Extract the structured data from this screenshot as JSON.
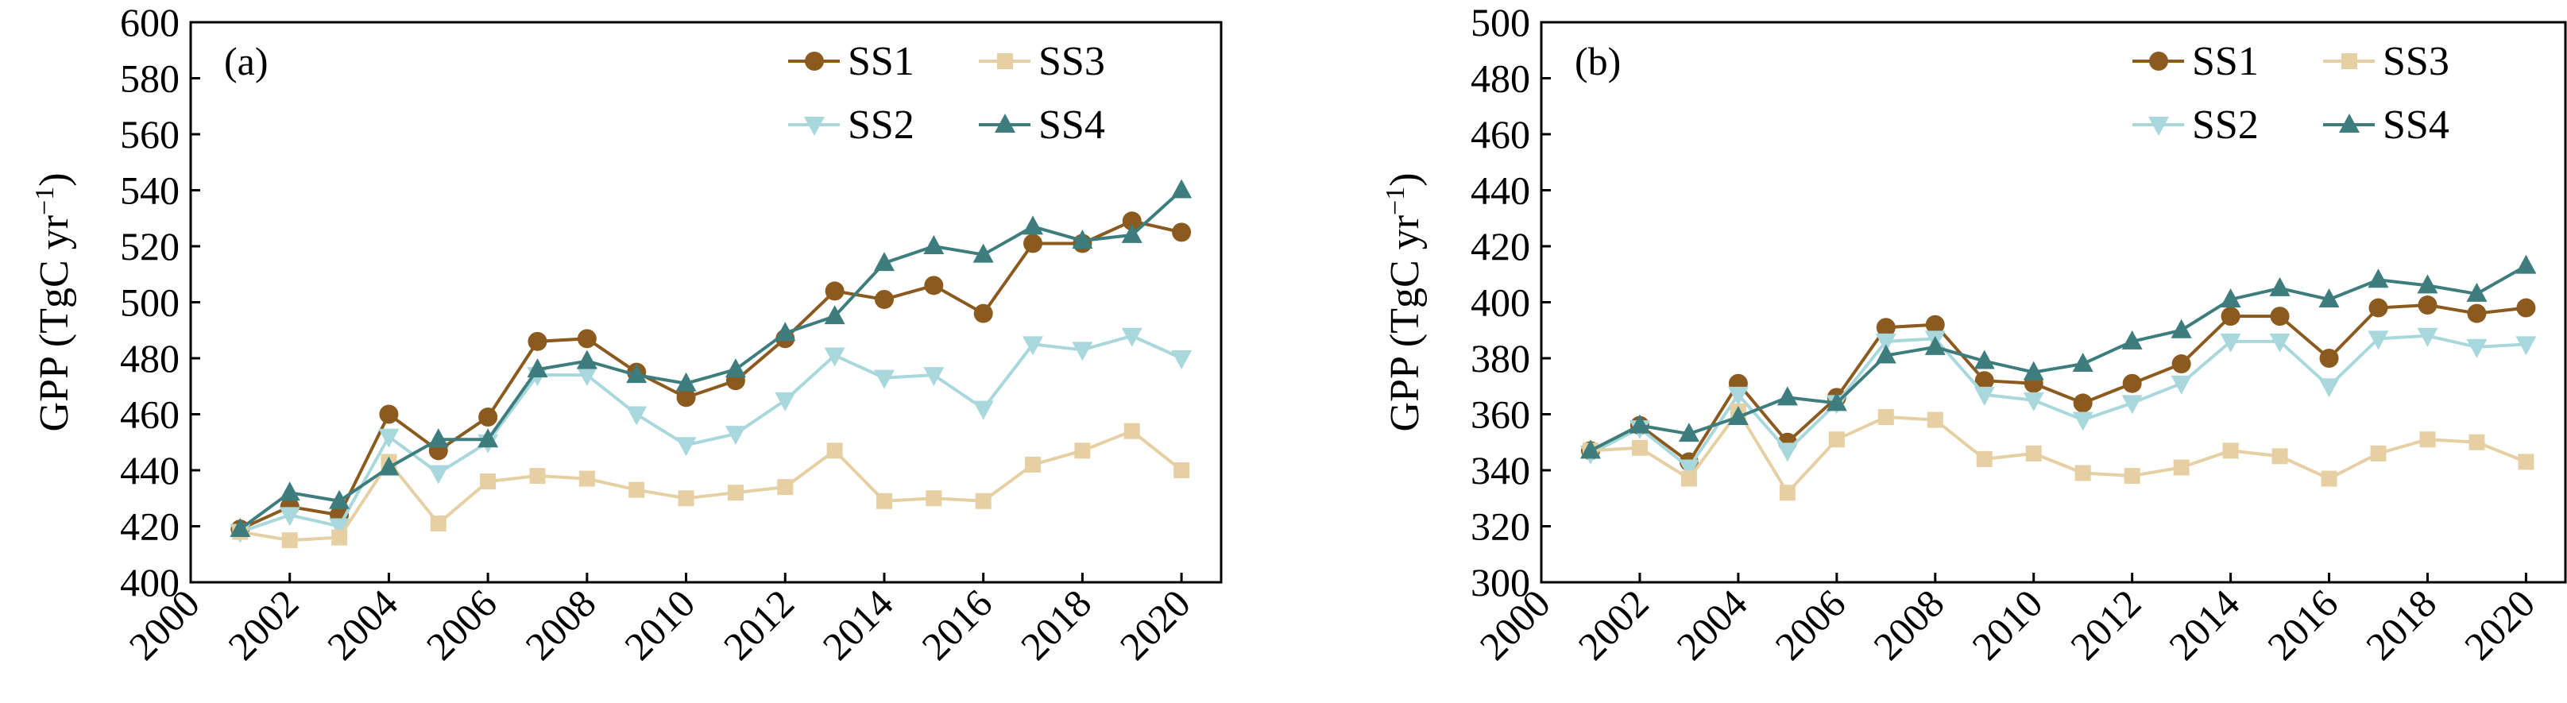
{
  "chart_data": [
    {
      "type": "line",
      "panel_label": "(a)",
      "ylabel": "GPP (TgC yr⁻¹)",
      "xlabel": "",
      "xlim": [
        2000,
        2020.8
      ],
      "ylim": [
        400,
        600
      ],
      "xticks": [
        2000,
        2002,
        2004,
        2006,
        2008,
        2010,
        2012,
        2014,
        2016,
        2018,
        2020
      ],
      "yticks": [
        400,
        420,
        440,
        460,
        480,
        500,
        520,
        540,
        560,
        580,
        600
      ],
      "legend_position": "top-right",
      "grid": false,
      "x": [
        2001,
        2002,
        2003,
        2004,
        2005,
        2006,
        2007,
        2008,
        2009,
        2010,
        2011,
        2012,
        2013,
        2014,
        2015,
        2016,
        2017,
        2018,
        2019,
        2020
      ],
      "series": [
        {
          "name": "SS1",
          "color": "#8b5a1f",
          "marker": "circle",
          "values": [
            419,
            427,
            424,
            460,
            447,
            459,
            486,
            487,
            475,
            466,
            472,
            487,
            504,
            501,
            506,
            496,
            521,
            521,
            529,
            525
          ]
        },
        {
          "name": "SS2",
          "color": "#a8d8dc",
          "marker": "triangle-down",
          "values": [
            418,
            424,
            420,
            452,
            439,
            450,
            474,
            474,
            460,
            449,
            453,
            465,
            481,
            473,
            474,
            462,
            485,
            483,
            488,
            480
          ]
        },
        {
          "name": "SS3",
          "color": "#e6cfa2",
          "marker": "square",
          "values": [
            418,
            415,
            416,
            443,
            421,
            436,
            438,
            437,
            433,
            430,
            432,
            434,
            447,
            429,
            430,
            429,
            442,
            447,
            454,
            440
          ]
        },
        {
          "name": "SS4",
          "color": "#3e7d7e",
          "marker": "triangle-up",
          "values": [
            419,
            432,
            429,
            441,
            451,
            451,
            476,
            479,
            474,
            471,
            476,
            489,
            495,
            514,
            520,
            517,
            527,
            522,
            524,
            540
          ]
        }
      ]
    },
    {
      "type": "line",
      "panel_label": "(b)",
      "ylabel": "GPP (TgC yr⁻¹)",
      "xlabel": "",
      "xlim": [
        2000,
        2020.8
      ],
      "ylim": [
        300,
        500
      ],
      "xticks": [
        2000,
        2002,
        2004,
        2006,
        2008,
        2010,
        2012,
        2014,
        2016,
        2018,
        2020
      ],
      "yticks": [
        300,
        320,
        340,
        360,
        380,
        400,
        420,
        440,
        460,
        480,
        500
      ],
      "legend_position": "top-right",
      "grid": false,
      "x": [
        2001,
        2002,
        2003,
        2004,
        2005,
        2006,
        2007,
        2008,
        2009,
        2010,
        2011,
        2012,
        2013,
        2014,
        2015,
        2016,
        2017,
        2018,
        2019,
        2020
      ],
      "series": [
        {
          "name": "SS1",
          "color": "#8b5a1f",
          "marker": "circle",
          "values": [
            347,
            356,
            343,
            371,
            350,
            366,
            391,
            392,
            372,
            371,
            364,
            371,
            378,
            395,
            395,
            380,
            398,
            399,
            396,
            398
          ]
        },
        {
          "name": "SS2",
          "color": "#a8d8dc",
          "marker": "triangle-down",
          "values": [
            346,
            355,
            341,
            367,
            347,
            364,
            386,
            387,
            367,
            365,
            358,
            364,
            371,
            386,
            386,
            370,
            387,
            388,
            384,
            385
          ]
        },
        {
          "name": "SS3",
          "color": "#e6cfa2",
          "marker": "square",
          "values": [
            347,
            348,
            337,
            361,
            332,
            351,
            359,
            358,
            344,
            346,
            339,
            338,
            341,
            347,
            345,
            337,
            346,
            351,
            350,
            343
          ]
        },
        {
          "name": "SS4",
          "color": "#3e7d7e",
          "marker": "triangle-up",
          "values": [
            347,
            356,
            353,
            359,
            366,
            364,
            381,
            384,
            379,
            375,
            378,
            386,
            390,
            401,
            405,
            401,
            408,
            406,
            403,
            413
          ]
        }
      ]
    }
  ]
}
